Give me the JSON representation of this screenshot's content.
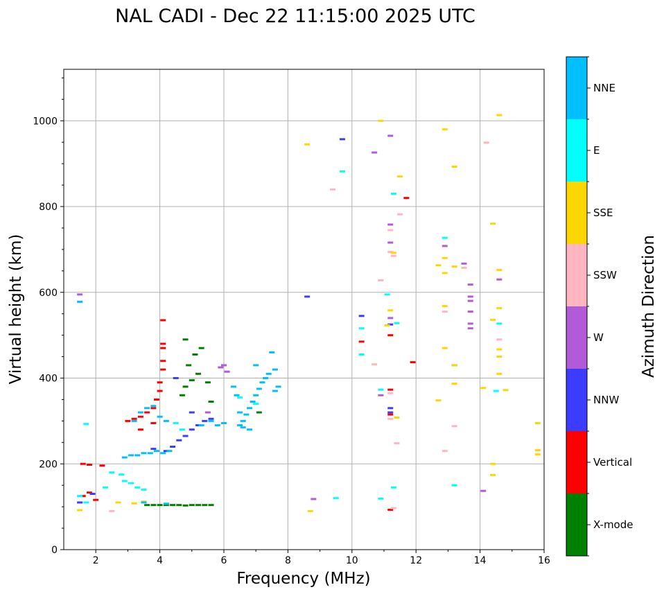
{
  "chart_data": {
    "type": "scatter",
    "title": "NAL CADI - Dec 22 11:15:00 2025 UTC",
    "xlabel": "Frequency (MHz)",
    "ylabel": "Virtual height (km)",
    "xlim": [
      1,
      16
    ],
    "ylim": [
      0,
      1120
    ],
    "xticks": [
      2,
      4,
      6,
      8,
      10,
      12,
      14,
      16
    ],
    "yticks": [
      0,
      200,
      400,
      600,
      800,
      1000
    ],
    "grid": true,
    "colorbar": {
      "label": "Azimuth Direction",
      "categories": [
        {
          "name": "X-mode",
          "color": "#008000"
        },
        {
          "name": "Vertical",
          "color": "#ff0000"
        },
        {
          "name": "NNW",
          "color": "#3c3cff"
        },
        {
          "name": "W",
          "color": "#b15bd8"
        },
        {
          "name": "SSW",
          "color": "#ffb6c1"
        },
        {
          "name": "SSE",
          "color": "#ffd700"
        },
        {
          "name": "E",
          "color": "#00ffff"
        },
        {
          "name": "NNE",
          "color": "#00bfff"
        }
      ]
    },
    "series": [
      {
        "name": "X-mode",
        "points": [
          [
            3.6,
            104
          ],
          [
            3.8,
            104
          ],
          [
            4.0,
            104
          ],
          [
            4.2,
            104
          ],
          [
            4.4,
            104
          ],
          [
            4.6,
            104
          ],
          [
            4.8,
            103
          ],
          [
            5.0,
            104
          ],
          [
            5.2,
            104
          ],
          [
            5.4,
            104
          ],
          [
            5.6,
            104
          ],
          [
            4.8,
            380
          ],
          [
            5.0,
            395
          ],
          [
            5.2,
            410
          ],
          [
            4.9,
            430
          ],
          [
            5.1,
            455
          ],
          [
            5.3,
            470
          ],
          [
            4.7,
            360
          ],
          [
            5.5,
            390
          ],
          [
            4.8,
            490
          ],
          [
            5.6,
            345
          ],
          [
            7.1,
            320
          ]
        ]
      },
      {
        "name": "Vertical",
        "points": [
          [
            1.6,
            200
          ],
          [
            1.8,
            198
          ],
          [
            2.2,
            196
          ],
          [
            1.6,
            125
          ],
          [
            1.8,
            133
          ],
          [
            2.0,
            116
          ],
          [
            3.0,
            300
          ],
          [
            3.2,
            305
          ],
          [
            3.4,
            310
          ],
          [
            3.6,
            320
          ],
          [
            3.8,
            330
          ],
          [
            3.9,
            350
          ],
          [
            4.0,
            370
          ],
          [
            4.0,
            390
          ],
          [
            4.1,
            420
          ],
          [
            4.1,
            440
          ],
          [
            4.1,
            470
          ],
          [
            4.1,
            480
          ],
          [
            4.1,
            535
          ],
          [
            3.4,
            280
          ],
          [
            3.8,
            295
          ],
          [
            11.2,
            373
          ],
          [
            11.2,
            315
          ],
          [
            11.2,
            93
          ],
          [
            10.3,
            485
          ],
          [
            11.2,
            500
          ],
          [
            11.9,
            437
          ],
          [
            11.7,
            820
          ]
        ]
      },
      {
        "name": "NNW",
        "points": [
          [
            1.5,
            110
          ],
          [
            3.8,
            235
          ],
          [
            4.2,
            230
          ],
          [
            4.4,
            240
          ],
          [
            4.6,
            255
          ],
          [
            4.8,
            265
          ],
          [
            5.0,
            280
          ],
          [
            5.2,
            290
          ],
          [
            5.4,
            300
          ],
          [
            5.6,
            305
          ],
          [
            5.0,
            320
          ],
          [
            8.6,
            590
          ],
          [
            9.7,
            957
          ],
          [
            10.3,
            545
          ],
          [
            11.2,
            525
          ],
          [
            11.2,
            330
          ],
          [
            11.2,
            320
          ],
          [
            13.2,
            430
          ],
          [
            1.9,
            130
          ],
          [
            4.5,
            400
          ]
        ]
      },
      {
        "name": "W",
        "points": [
          [
            5.9,
            425
          ],
          [
            6.0,
            430
          ],
          [
            6.1,
            415
          ],
          [
            5.5,
            320
          ],
          [
            13.7,
            618
          ],
          [
            13.7,
            590
          ],
          [
            13.7,
            580
          ],
          [
            13.7,
            555
          ],
          [
            13.7,
            527
          ],
          [
            13.7,
            516
          ],
          [
            12.9,
            708
          ],
          [
            14.6,
            630
          ],
          [
            14.1,
            137
          ],
          [
            8.8,
            118
          ],
          [
            11.2,
            758
          ],
          [
            11.2,
            716
          ],
          [
            10.7,
            926
          ],
          [
            11.2,
            965
          ],
          [
            10.9,
            360
          ],
          [
            13.5,
            667
          ],
          [
            1.5,
            595
          ],
          [
            11.2,
            540
          ]
        ]
      },
      {
        "name": "SSW",
        "points": [
          [
            12.9,
            555
          ],
          [
            12.9,
            230
          ],
          [
            10.9,
            628
          ],
          [
            11.2,
            745
          ],
          [
            11.2,
            694
          ],
          [
            11.3,
            685
          ],
          [
            14.2,
            949
          ],
          [
            11.4,
            248
          ],
          [
            10.7,
            432
          ],
          [
            11.2,
            305
          ],
          [
            9.4,
            840
          ],
          [
            14.6,
            490
          ],
          [
            11.2,
            365
          ],
          [
            13.5,
            657
          ],
          [
            11.5,
            782
          ],
          [
            13.2,
            288
          ],
          [
            11.3,
            97
          ],
          [
            2.5,
            90
          ]
        ]
      },
      {
        "name": "SSE",
        "points": [
          [
            8.6,
            945
          ],
          [
            10.9,
            1000
          ],
          [
            11.5,
            870
          ],
          [
            12.9,
            980
          ],
          [
            13.2,
            893
          ],
          [
            12.7,
            663
          ],
          [
            12.9,
            680
          ],
          [
            12.9,
            645
          ],
          [
            12.9,
            568
          ],
          [
            12.9,
            470
          ],
          [
            13.2,
            430
          ],
          [
            13.2,
            387
          ],
          [
            12.7,
            348
          ],
          [
            11.3,
            692
          ],
          [
            11.1,
            523
          ],
          [
            14.4,
            760
          ],
          [
            14.6,
            1013
          ],
          [
            14.6,
            652
          ],
          [
            14.6,
            563
          ],
          [
            14.6,
            467
          ],
          [
            14.6,
            450
          ],
          [
            14.6,
            410
          ],
          [
            14.4,
            536
          ],
          [
            14.8,
            372
          ],
          [
            14.1,
            377
          ],
          [
            14.4,
            200
          ],
          [
            14.4,
            174
          ],
          [
            15.8,
            295
          ],
          [
            15.8,
            232
          ],
          [
            15.8,
            222
          ],
          [
            8.7,
            90
          ],
          [
            11.4,
            308
          ],
          [
            13.2,
            660
          ],
          [
            1.5,
            92
          ],
          [
            2.7,
            110
          ],
          [
            3.2,
            108
          ],
          [
            3.5,
            112
          ],
          [
            11.2,
            558
          ]
        ]
      },
      {
        "name": "E",
        "points": [
          [
            1.5,
            125
          ],
          [
            1.7,
            110
          ],
          [
            2.3,
            145
          ],
          [
            2.5,
            180
          ],
          [
            2.8,
            175
          ],
          [
            2.9,
            160
          ],
          [
            3.1,
            155
          ],
          [
            3.3,
            145
          ],
          [
            3.5,
            140
          ],
          [
            4.5,
            295
          ],
          [
            4.7,
            280
          ],
          [
            6.5,
            355
          ],
          [
            7.0,
            340
          ],
          [
            10.9,
            119
          ],
          [
            11.3,
            145
          ],
          [
            13.2,
            150
          ],
          [
            14.5,
            370
          ],
          [
            12.9,
            727
          ],
          [
            10.3,
            455
          ],
          [
            10.3,
            516
          ],
          [
            11.1,
            595
          ],
          [
            11.3,
            830
          ],
          [
            9.7,
            882
          ],
          [
            9.5,
            120
          ],
          [
            10.9,
            373
          ],
          [
            11.4,
            528
          ],
          [
            14.6,
            527
          ],
          [
            1.7,
            293
          ]
        ]
      },
      {
        "name": "NNE",
        "points": [
          [
            1.5,
            578
          ],
          [
            2.9,
            215
          ],
          [
            3.1,
            220
          ],
          [
            3.3,
            220
          ],
          [
            3.5,
            225
          ],
          [
            3.7,
            225
          ],
          [
            3.9,
            230
          ],
          [
            4.1,
            225
          ],
          [
            4.3,
            230
          ],
          [
            3.2,
            300
          ],
          [
            3.4,
            320
          ],
          [
            3.6,
            330
          ],
          [
            3.8,
            335
          ],
          [
            4.0,
            310
          ],
          [
            4.2,
            300
          ],
          [
            5.3,
            290
          ],
          [
            5.6,
            300
          ],
          [
            5.8,
            290
          ],
          [
            6.0,
            295
          ],
          [
            6.5,
            290
          ],
          [
            6.6,
            300
          ],
          [
            6.7,
            315
          ],
          [
            6.8,
            330
          ],
          [
            6.9,
            345
          ],
          [
            7.0,
            360
          ],
          [
            7.1,
            375
          ],
          [
            7.2,
            390
          ],
          [
            7.3,
            400
          ],
          [
            7.4,
            410
          ],
          [
            7.6,
            420
          ],
          [
            7.7,
            380
          ],
          [
            7.6,
            370
          ],
          [
            6.3,
            380
          ],
          [
            6.4,
            360
          ],
          [
            6.5,
            320
          ],
          [
            6.6,
            285
          ],
          [
            6.8,
            280
          ],
          [
            7.5,
            460
          ],
          [
            7.0,
            430
          ],
          [
            3.5,
            110
          ],
          [
            4.2,
            107
          ]
        ]
      }
    ]
  }
}
